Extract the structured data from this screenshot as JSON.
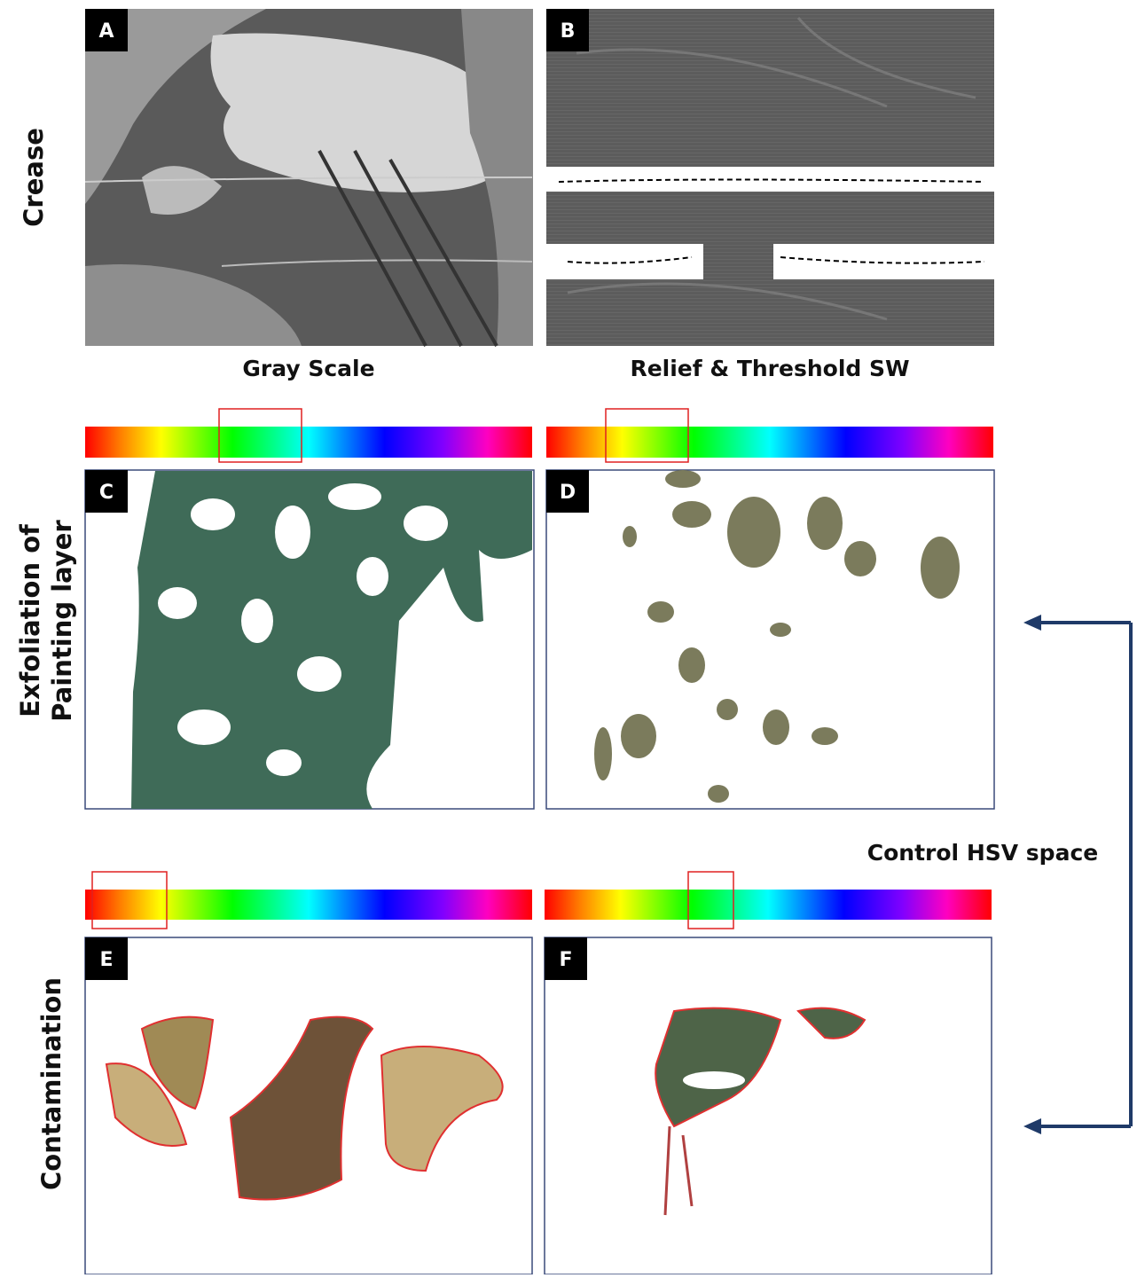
{
  "rows": [
    {
      "label": "Crease"
    },
    {
      "label_lines": [
        "Exfoliation of",
        "Painting layer"
      ]
    },
    {
      "label": "Contamination"
    }
  ],
  "captions": [
    "Gray Scale",
    "Relief & Threshold SW"
  ],
  "panels": [
    "A",
    "B",
    "C",
    "D",
    "E",
    "F"
  ],
  "annotation": "Control HSV space"
}
